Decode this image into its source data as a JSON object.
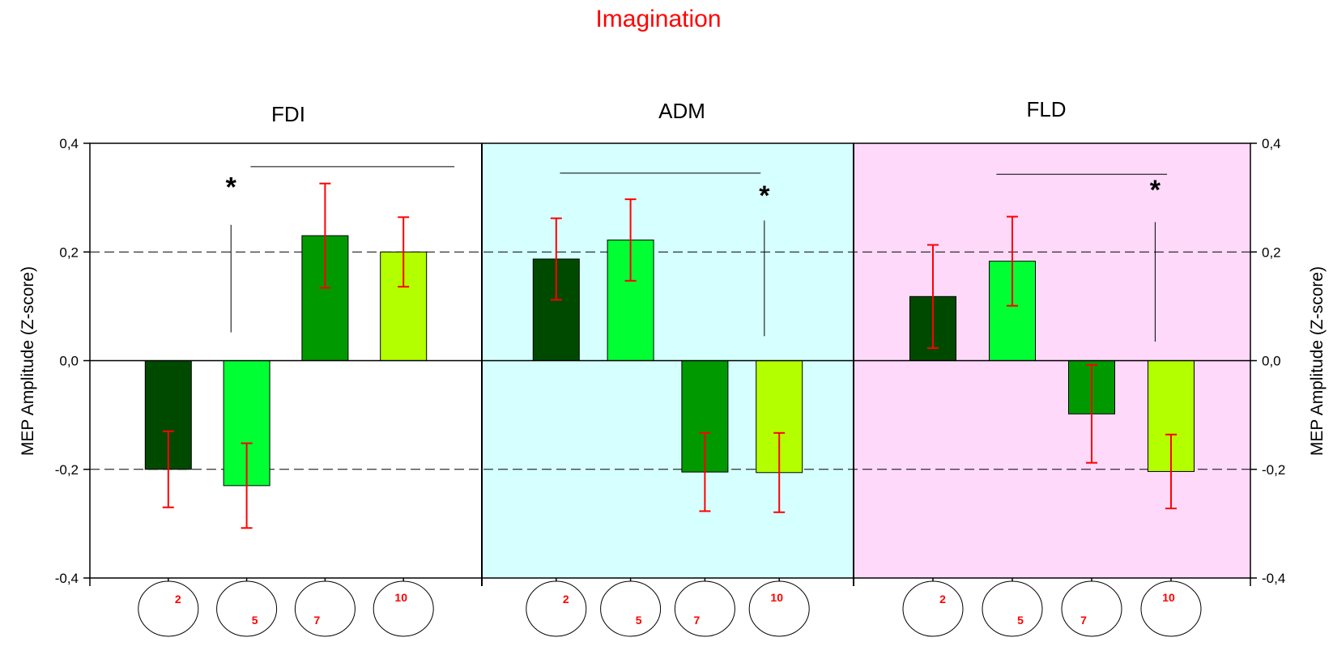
{
  "chart_data": {
    "type": "bar",
    "title": "Imagination",
    "ylabel": "MEP Amplitude (Z-score)",
    "ylim": [
      -0.4,
      0.4
    ],
    "yticks": [
      "-0,4",
      "-0,2",
      "0,0",
      "0,2",
      "0,4"
    ],
    "ytick_values": [
      -0.4,
      -0.2,
      0,
      0.2,
      0.4
    ],
    "reference_lines": [
      0.2,
      -0.2
    ],
    "condition_labels": [
      "2",
      "5",
      "7",
      "10"
    ],
    "significance_marker": "*",
    "colors": {
      "title": "#ff0000",
      "bars": [
        "#004a00",
        "#00ff33",
        "#009900",
        "#b3ff00"
      ],
      "error_bars": "#ff0000",
      "panel_backgrounds": [
        "#ffffff",
        "#d6ffff",
        "#ffd9fa"
      ]
    },
    "panels": [
      {
        "name": "FDI",
        "values": [
          -0.2,
          -0.23,
          0.23,
          0.2
        ],
        "errors": [
          0.07,
          0.078,
          0.096,
          0.064
        ],
        "sig_hline": [
          0.357,
          1.55,
          4.15
        ],
        "sig_vline": [
          0.052,
          0.25,
          1.3
        ],
        "star": [
          1.3,
          0.32
        ]
      },
      {
        "name": "ADM",
        "values": [
          0.187,
          0.222,
          -0.205,
          -0.206
        ],
        "errors": [
          0.075,
          0.075,
          0.072,
          0.073
        ],
        "sig_hline": [
          0.345,
          0.55,
          3.25
        ],
        "sig_vline": [
          0.045,
          0.258,
          3.3
        ],
        "star": [
          3.3,
          0.305
        ]
      },
      {
        "name": "FLD",
        "values": [
          0.118,
          0.183,
          -0.098,
          -0.204
        ],
        "errors": [
          0.095,
          0.082,
          0.09,
          0.068
        ],
        "sig_hline": [
          0.343,
          1.3,
          3.45
        ],
        "sig_vline": [
          0.035,
          0.255,
          3.3
        ],
        "star": [
          3.3,
          0.315
        ]
      }
    ]
  }
}
